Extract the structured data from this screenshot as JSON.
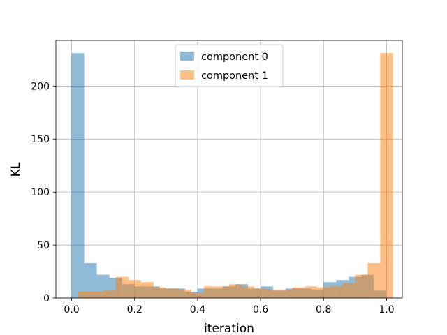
{
  "chart_data": {
    "type": "bar",
    "subtype": "histogram",
    "title": "",
    "xlabel": "iteration",
    "ylabel": "KL",
    "xlim": [
      -0.05,
      1.05
    ],
    "ylim": [
      0,
      243
    ],
    "xticks": [
      0.0,
      0.2,
      0.4,
      0.6,
      0.8,
      1.0
    ],
    "xtick_labels": [
      "0.0",
      "0.2",
      "0.4",
      "0.6",
      "0.8",
      "1.0"
    ],
    "yticks": [
      0,
      50,
      100,
      150,
      200
    ],
    "ytick_labels": [
      "0",
      "50",
      "100",
      "150",
      "200"
    ],
    "grid": true,
    "legend_position": "top-center",
    "bin_edges": [
      0.0,
      0.04,
      0.08,
      0.12,
      0.16,
      0.2,
      0.24,
      0.28,
      0.32,
      0.36,
      0.4,
      0.44,
      0.48,
      0.52,
      0.56,
      0.6,
      0.64,
      0.68,
      0.72,
      0.76,
      0.8,
      0.84,
      0.88,
      0.92,
      0.96,
      1.0
    ],
    "series": [
      {
        "name": "component 0",
        "color": "#1f77b4",
        "opacity": 0.5,
        "offset": 0.0,
        "values": [
          231,
          33,
          22,
          19,
          13,
          11,
          11,
          9,
          9,
          6,
          9,
          9,
          11,
          13,
          9,
          11,
          7,
          9,
          9,
          8,
          15,
          17,
          20,
          22,
          7
        ]
      },
      {
        "name": "component 1",
        "color": "#ff7f0e",
        "opacity": 0.5,
        "offset": 0.02,
        "values": [
          6,
          6,
          7,
          20,
          17,
          15,
          10,
          9,
          8,
          5,
          11,
          11,
          13,
          11,
          9,
          8,
          8,
          10,
          11,
          10,
          11,
          14,
          22,
          33,
          231
        ]
      }
    ]
  }
}
